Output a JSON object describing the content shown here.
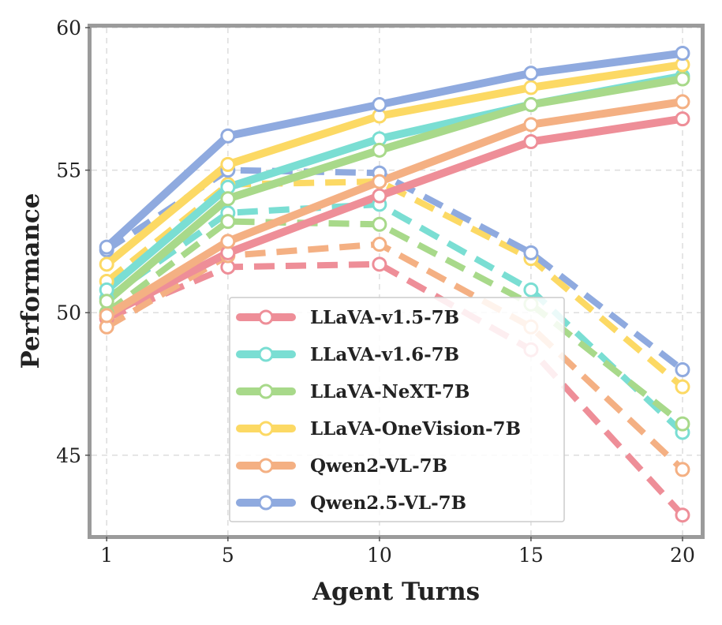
{
  "chart_data": {
    "type": "line",
    "title": "",
    "xlabel": "Agent Turns",
    "ylabel": "Performance",
    "x": [
      1,
      5,
      10,
      15,
      20
    ],
    "xticks": [
      "1",
      "5",
      "10",
      "15",
      "20"
    ],
    "yticks": [
      "45",
      "50",
      "55",
      "60"
    ],
    "xlim": [
      0.5,
      20.6
    ],
    "ylim": [
      42.2,
      60
    ],
    "grid": true,
    "legend_position": "bottom-center",
    "series": [
      {
        "name": "LLaVA-v1.5-7B",
        "color": "#EE8E98",
        "style": "solid",
        "values": [
          49.9,
          52.1,
          54.1,
          56.0,
          56.8
        ]
      },
      {
        "name": "LLaVA-v1.5-7B",
        "color": "#EE8E98",
        "style": "dashed",
        "values": [
          49.8,
          51.6,
          51.7,
          48.7,
          42.9
        ]
      },
      {
        "name": "LLaVA-v1.6-7B",
        "color": "#7ADED3",
        "style": "solid",
        "values": [
          50.8,
          54.4,
          56.1,
          57.3,
          58.3
        ]
      },
      {
        "name": "LLaVA-v1.6-7B",
        "color": "#7ADED3",
        "style": "dashed",
        "values": [
          50.5,
          53.5,
          53.8,
          50.8,
          45.8
        ]
      },
      {
        "name": "LLaVA-NeXT-7B",
        "color": "#A8D98A",
        "style": "solid",
        "values": [
          50.4,
          54.0,
          55.7,
          57.3,
          58.2
        ]
      },
      {
        "name": "LLaVA-NeXT-7B",
        "color": "#A8D98A",
        "style": "dashed",
        "values": [
          50.0,
          53.2,
          53.1,
          50.3,
          46.1
        ]
      },
      {
        "name": "LLaVA-OneVision-7B",
        "color": "#FCD964",
        "style": "solid",
        "values": [
          51.7,
          55.2,
          56.9,
          57.9,
          58.7
        ]
      },
      {
        "name": "LLaVA-OneVision-7B",
        "color": "#FCD964",
        "style": "dashed",
        "values": [
          51.1,
          54.5,
          54.6,
          51.9,
          47.4
        ]
      },
      {
        "name": "Qwen2-VL-7B",
        "color": "#F4B083",
        "style": "solid",
        "values": [
          49.9,
          52.5,
          54.6,
          56.6,
          57.4
        ]
      },
      {
        "name": "Qwen2-VL-7B",
        "color": "#F4B083",
        "style": "dashed",
        "values": [
          49.5,
          52.0,
          52.4,
          49.5,
          44.5
        ]
      },
      {
        "name": "Qwen2.5-VL-7B",
        "color": "#8FAADF",
        "style": "solid",
        "values": [
          52.3,
          56.2,
          57.3,
          58.4,
          59.1
        ]
      },
      {
        "name": "Qwen2.5-VL-7B",
        "color": "#8FAADF",
        "style": "dashed",
        "values": [
          52.2,
          55.0,
          54.9,
          52.1,
          48.0
        ]
      }
    ],
    "legend": [
      {
        "label": "LLaVA-v1.5-7B",
        "color": "#EE8E98"
      },
      {
        "label": "LLaVA-v1.6-7B",
        "color": "#7ADED3"
      },
      {
        "label": "LLaVA-NeXT-7B",
        "color": "#A8D98A"
      },
      {
        "label": "LLaVA-OneVision-7B",
        "color": "#FCD964"
      },
      {
        "label": "Qwen2-VL-7B",
        "color": "#F4B083"
      },
      {
        "label": "Qwen2.5-VL-7B",
        "color": "#8FAADF"
      }
    ]
  }
}
